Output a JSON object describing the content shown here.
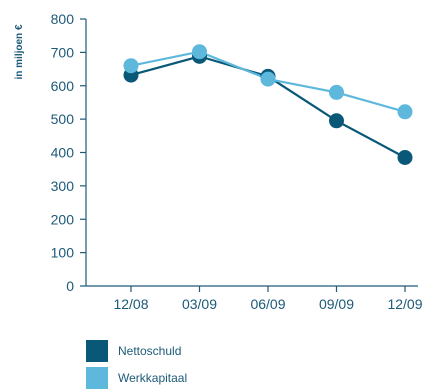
{
  "chart_data": {
    "type": "line",
    "ylabel": "in miljoen €",
    "xlabel": "",
    "title": "",
    "categories": [
      "12/08",
      "03/09",
      "06/09",
      "09/09",
      "12/09"
    ],
    "ylim": [
      0,
      800
    ],
    "yticks": [
      0,
      100,
      200,
      300,
      400,
      500,
      600,
      700,
      800
    ],
    "grid": false,
    "legend": "bottom-left",
    "series": [
      {
        "name": "Nettoschuld",
        "color": "#0a5878",
        "values": [
          632,
          688,
          628,
          495,
          385
        ]
      },
      {
        "name": "Werkkapitaal",
        "color": "#5db8dc",
        "values": [
          660,
          702,
          620,
          580,
          522
        ]
      }
    ]
  }
}
